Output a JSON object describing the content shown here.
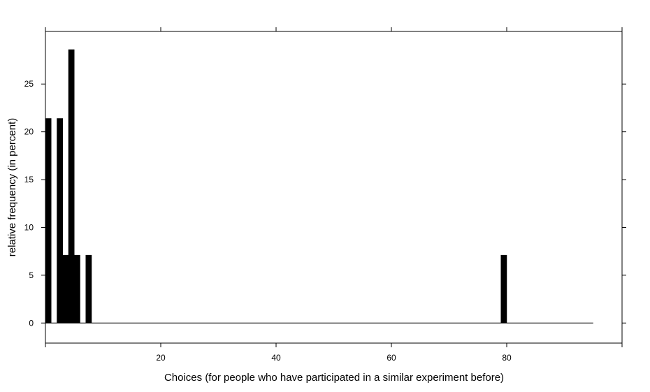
{
  "chart_data": {
    "type": "bar",
    "title": "",
    "xlabel": "Choices (for people who have participated in a similar experiment before)",
    "ylabel": "relative frequency (in percent)",
    "xlim": [
      0,
      100
    ],
    "ylim": [
      -2.1,
      30.5
    ],
    "x_ticks": [
      20,
      40,
      60,
      80
    ],
    "y_ticks": [
      0,
      5,
      10,
      15,
      20,
      25
    ],
    "bin_width": 1,
    "baseline_range": [
      0,
      95
    ],
    "grid": false,
    "bar_color": "#000000",
    "bins": [
      {
        "x0": 0,
        "value": 21.4
      },
      {
        "x0": 2,
        "value": 21.4
      },
      {
        "x0": 3,
        "value": 7.1
      },
      {
        "x0": 4,
        "value": 28.6
      },
      {
        "x0": 5,
        "value": 7.1
      },
      {
        "x0": 7,
        "value": 7.1
      },
      {
        "x0": 79,
        "value": 7.1
      }
    ]
  }
}
